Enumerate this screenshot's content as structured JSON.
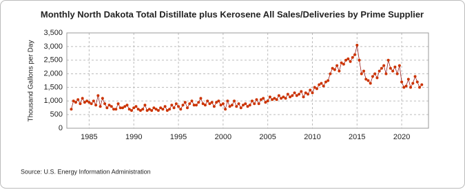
{
  "chart_data": {
    "type": "line",
    "title": "Monthly North Dakota Total Distillate plus Kerosene All Sales/Deliveries by Prime Supplier",
    "y_label": "Thousand Gallons per Day",
    "source": "Source: U.S. Energy Information Administration",
    "grid": true,
    "xlim": [
      1982.5,
      2023
    ],
    "xticks": [
      1985,
      1990,
      1995,
      2000,
      2005,
      2010,
      2015,
      2020
    ],
    "ylim": [
      0,
      3500
    ],
    "yticks": [
      0,
      {
        "value": 500,
        "label": "500"
      },
      {
        "value": 1000,
        "label": "1,000"
      },
      {
        "value": 1500,
        "label": "1,500"
      },
      {
        "value": 2000,
        "label": "2,000"
      },
      {
        "value": 2500,
        "label": "2,500"
      },
      {
        "value": 3000,
        "label": "3,000"
      },
      {
        "value": 3500,
        "label": "3,500"
      }
    ],
    "x": [
      1983,
      1983.25,
      1983.5,
      1983.75,
      1984,
      1984.25,
      1984.5,
      1984.75,
      1985,
      1985.25,
      1985.5,
      1985.75,
      1986,
      1986.25,
      1986.5,
      1986.75,
      1987,
      1987.25,
      1987.5,
      1987.75,
      1988,
      1988.25,
      1988.5,
      1988.75,
      1989,
      1989.25,
      1989.5,
      1989.75,
      1990,
      1990.25,
      1990.5,
      1990.75,
      1991,
      1991.25,
      1991.5,
      1991.75,
      1992,
      1992.25,
      1992.5,
      1992.75,
      1993,
      1993.25,
      1993.5,
      1993.75,
      1994,
      1994.25,
      1994.5,
      1994.75,
      1995,
      1995.25,
      1995.5,
      1995.75,
      1996,
      1996.25,
      1996.5,
      1996.75,
      1997,
      1997.25,
      1997.5,
      1997.75,
      1998,
      1998.25,
      1998.5,
      1998.75,
      1999,
      1999.25,
      1999.5,
      1999.75,
      2000,
      2000.25,
      2000.5,
      2000.75,
      2001,
      2001.25,
      2001.5,
      2001.75,
      2002,
      2002.25,
      2002.5,
      2002.75,
      2003,
      2003.25,
      2003.5,
      2003.75,
      2004,
      2004.25,
      2004.5,
      2004.75,
      2005,
      2005.25,
      2005.5,
      2005.75,
      2006,
      2006.25,
      2006.5,
      2006.75,
      2007,
      2007.25,
      2007.5,
      2007.75,
      2008,
      2008.25,
      2008.5,
      2008.75,
      2009,
      2009.25,
      2009.5,
      2009.75,
      2010,
      2010.25,
      2010.5,
      2010.75,
      2011,
      2011.25,
      2011.5,
      2011.75,
      2012,
      2012.25,
      2012.5,
      2012.75,
      2013,
      2013.25,
      2013.5,
      2013.75,
      2014,
      2014.25,
      2014.5,
      2014.75,
      2015,
      2015.25,
      2015.5,
      2015.75,
      2016,
      2016.25,
      2016.5,
      2016.75,
      2017,
      2017.25,
      2017.5,
      2017.75,
      2018,
      2018.25,
      2018.5,
      2018.75,
      2019,
      2019.25,
      2019.5,
      2019.75,
      2020,
      2020.25,
      2020.5,
      2020.75,
      2021,
      2021.25,
      2021.5,
      2021.75,
      2022,
      2022.25
    ],
    "series": [
      {
        "color": "#cc3300",
        "line_color": "#8b0000",
        "values": [
          700,
          1000,
          950,
          1050,
          900,
          1100,
          950,
          1000,
          950,
          900,
          1000,
          850,
          1200,
          800,
          1100,
          900,
          750,
          850,
          800,
          700,
          700,
          900,
          750,
          750,
          800,
          850,
          700,
          650,
          750,
          800,
          700,
          650,
          700,
          850,
          650,
          700,
          650,
          750,
          700,
          650,
          750,
          700,
          800,
          650,
          700,
          850,
          750,
          900,
          800,
          700,
          850,
          950,
          750,
          900,
          1000,
          850,
          850,
          950,
          1100,
          900,
          850,
          1000,
          900,
          950,
          800,
          950,
          1000,
          850,
          900,
          700,
          1000,
          800,
          850,
          1000,
          800,
          900,
          750,
          850,
          900,
          800,
          850,
          1000,
          900,
          1050,
          900,
          1050,
          1100,
          950,
          1000,
          1150,
          1050,
          1100,
          1050,
          1200,
          1100,
          1150,
          1100,
          1250,
          1150,
          1200,
          1300,
          1200,
          1250,
          1350,
          1150,
          1300,
          1250,
          1400,
          1300,
          1500,
          1450,
          1600,
          1650,
          1550,
          1700,
          1750,
          2000,
          2200,
          2150,
          2300,
          2100,
          2400,
          2350,
          2500,
          2550,
          2450,
          2600,
          2700,
          3050,
          2500,
          2000,
          2100,
          1800,
          1750,
          1650,
          1900,
          2000,
          1850,
          2100,
          2200,
          2300,
          2000,
          2500,
          2200,
          2100,
          2250,
          2000,
          2300,
          1700,
          1500,
          1550,
          1800,
          1500,
          1650,
          1900,
          1700,
          1500,
          1600
        ]
      }
    ]
  }
}
